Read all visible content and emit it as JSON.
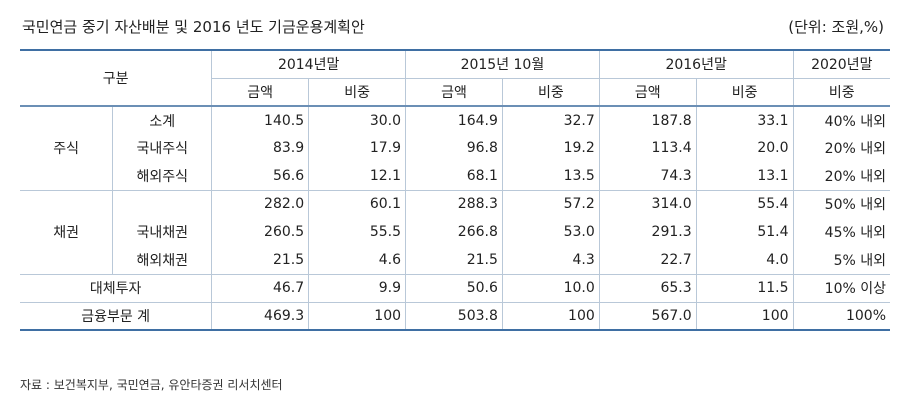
{
  "header": {
    "title": "국민연금 중기 자산배분 및 2016 년도 기금운용계획안",
    "unit": "(단위: 조원,%)"
  },
  "table": {
    "corner": "구분",
    "periods": [
      "2014년말",
      "2015년 10월",
      "2016년말",
      "2020년말"
    ],
    "sub_amount": "금액",
    "sub_ratio": "비중",
    "groups": {
      "stock": "주식",
      "bond": "채권"
    },
    "rows": [
      {
        "label": "소계",
        "v": [
          "140.5",
          "30.0",
          "164.9",
          "32.7",
          "187.8",
          "33.1",
          "40% 내외"
        ]
      },
      {
        "label": "국내주식",
        "v": [
          "83.9",
          "17.9",
          "96.8",
          "19.2",
          "113.4",
          "20.0",
          "20% 내외"
        ]
      },
      {
        "label": "해외주식",
        "v": [
          "56.6",
          "12.1",
          "68.1",
          "13.5",
          "74.3",
          "13.1",
          "20% 내외"
        ]
      },
      {
        "label": "",
        "v": [
          "282.0",
          "60.1",
          "288.3",
          "57.2",
          "314.0",
          "55.4",
          "50% 내외"
        ]
      },
      {
        "label": "국내채권",
        "v": [
          "260.5",
          "55.5",
          "266.8",
          "53.0",
          "291.3",
          "51.4",
          "45% 내외"
        ]
      },
      {
        "label": "해외채권",
        "v": [
          "21.5",
          "4.6",
          "21.5",
          "4.3",
          "22.7",
          "4.0",
          "5% 내외"
        ]
      },
      {
        "label": "대체투자",
        "v": [
          "46.7",
          "9.9",
          "50.6",
          "10.0",
          "65.3",
          "11.5",
          "10% 이상"
        ]
      },
      {
        "label": "금융부문 계",
        "v": [
          "469.3",
          "100",
          "503.8",
          "100",
          "567.0",
          "100",
          "100%"
        ]
      }
    ]
  },
  "source": "자료 : 보건복지부, 국민연금, 유안타증권 리서치센터"
}
